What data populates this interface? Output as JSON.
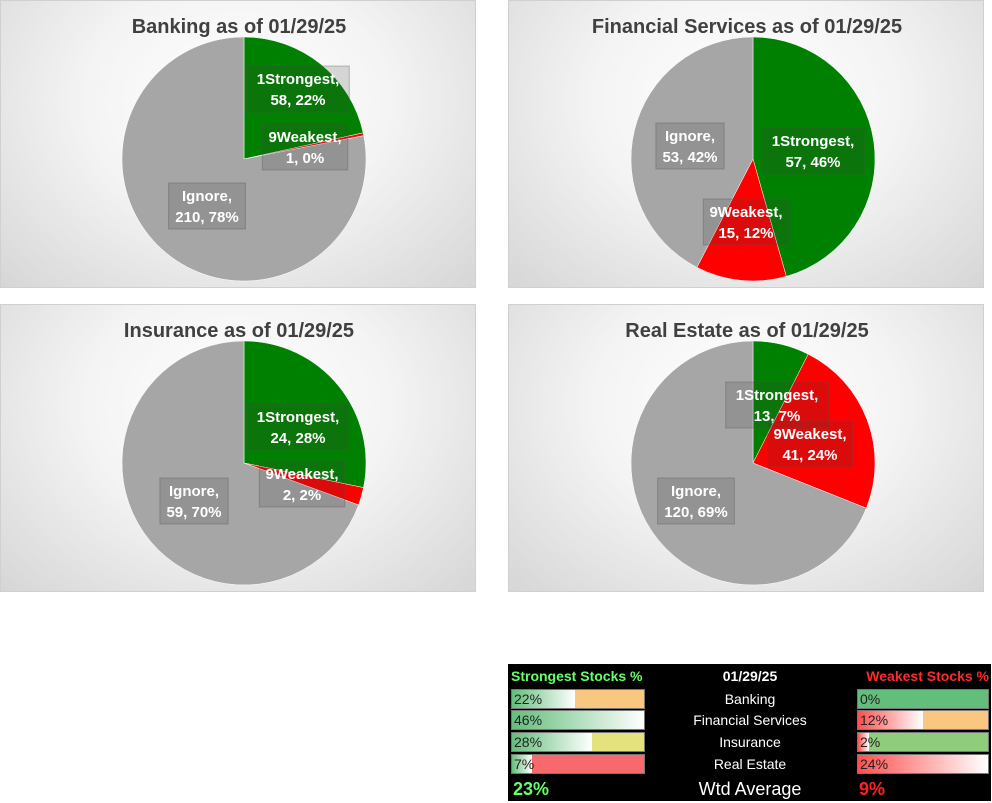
{
  "colors": {
    "strongest": "#008000",
    "weakest": "#ff0000",
    "ignore": "#a6a6a6",
    "strong_header": "#66ff66",
    "weak_header": "#ff2a2a"
  },
  "chart_data": [
    {
      "type": "pie",
      "title": "Banking as of 01/29/25",
      "slices": [
        {
          "category": "1Strongest",
          "value": 58,
          "percent": "22%",
          "label_line1": "1Strongest,",
          "label_line2": "58, 22%"
        },
        {
          "category": "9Weakest",
          "value": 1,
          "percent": "0%",
          "label_line1": "9Weakest,",
          "label_line2": "1, 0%"
        },
        {
          "category": "Ignore",
          "value": 210,
          "percent": "78%",
          "label_line1": "Ignore,",
          "label_line2": "210, 78%"
        }
      ]
    },
    {
      "type": "pie",
      "title": "Financial Services as of 01/29/25",
      "slices": [
        {
          "category": "1Strongest",
          "value": 57,
          "percent": "46%",
          "label_line1": "1Strongest,",
          "label_line2": "57, 46%"
        },
        {
          "category": "9Weakest",
          "value": 15,
          "percent": "12%",
          "label_line1": "9Weakest,",
          "label_line2": "15, 12%"
        },
        {
          "category": "Ignore",
          "value": 53,
          "percent": "42%",
          "label_line1": "Ignore,",
          "label_line2": "53, 42%"
        }
      ]
    },
    {
      "type": "pie",
      "title": "Insurance as of 01/29/25",
      "slices": [
        {
          "category": "1Strongest",
          "value": 24,
          "percent": "28%",
          "label_line1": "1Strongest,",
          "label_line2": "24, 28%"
        },
        {
          "category": "9Weakest",
          "value": 2,
          "percent": "2%",
          "label_line1": "9Weakest,",
          "label_line2": "2, 2%"
        },
        {
          "category": "Ignore",
          "value": 59,
          "percent": "70%",
          "label_line1": "Ignore,",
          "label_line2": "59, 70%"
        }
      ]
    },
    {
      "type": "pie",
      "title": "Real Estate as of 01/29/25",
      "slices": [
        {
          "category": "1Strongest",
          "value": 13,
          "percent": "7%",
          "label_line1": "1Strongest,",
          "label_line2": "13, 7%"
        },
        {
          "category": "9Weakest",
          "value": 41,
          "percent": "24%",
          "label_line1": "9Weakest,",
          "label_line2": "41, 24%"
        },
        {
          "category": "Ignore",
          "value": 120,
          "percent": "69%",
          "label_line1": "Ignore,",
          "label_line2": "120, 69%"
        }
      ]
    }
  ],
  "summary": {
    "header_strong": "Strongest Stocks %",
    "header_date": "01/29/25",
    "header_weak": "Weakest Stocks %",
    "rows": [
      {
        "sector": "Banking",
        "strong": "22%",
        "strong_value": 22,
        "strong_bg": "#f9c77f",
        "weak": "0%",
        "weak_value": 0,
        "weak_bg": "#63be7b"
      },
      {
        "sector": "Financial Services",
        "strong": "46%",
        "strong_value": 46,
        "strong_bg": "#63be7b",
        "weak": "12%",
        "weak_value": 12,
        "weak_bg": "#f9c77f"
      },
      {
        "sector": "Insurance",
        "strong": "28%",
        "strong_value": 28,
        "strong_bg": "#e4e27d",
        "weak": "2%",
        "weak_value": 2,
        "weak_bg": "#8fcc7c"
      },
      {
        "sector": "Real Estate",
        "strong": "7%",
        "strong_value": 7,
        "strong_bg": "#f8696b",
        "weak": "24%",
        "weak_value": 24,
        "weak_bg": "#f8696b"
      }
    ],
    "footer_strong": "23%",
    "footer_label": "Wtd Average",
    "footer_weak": "9%"
  }
}
